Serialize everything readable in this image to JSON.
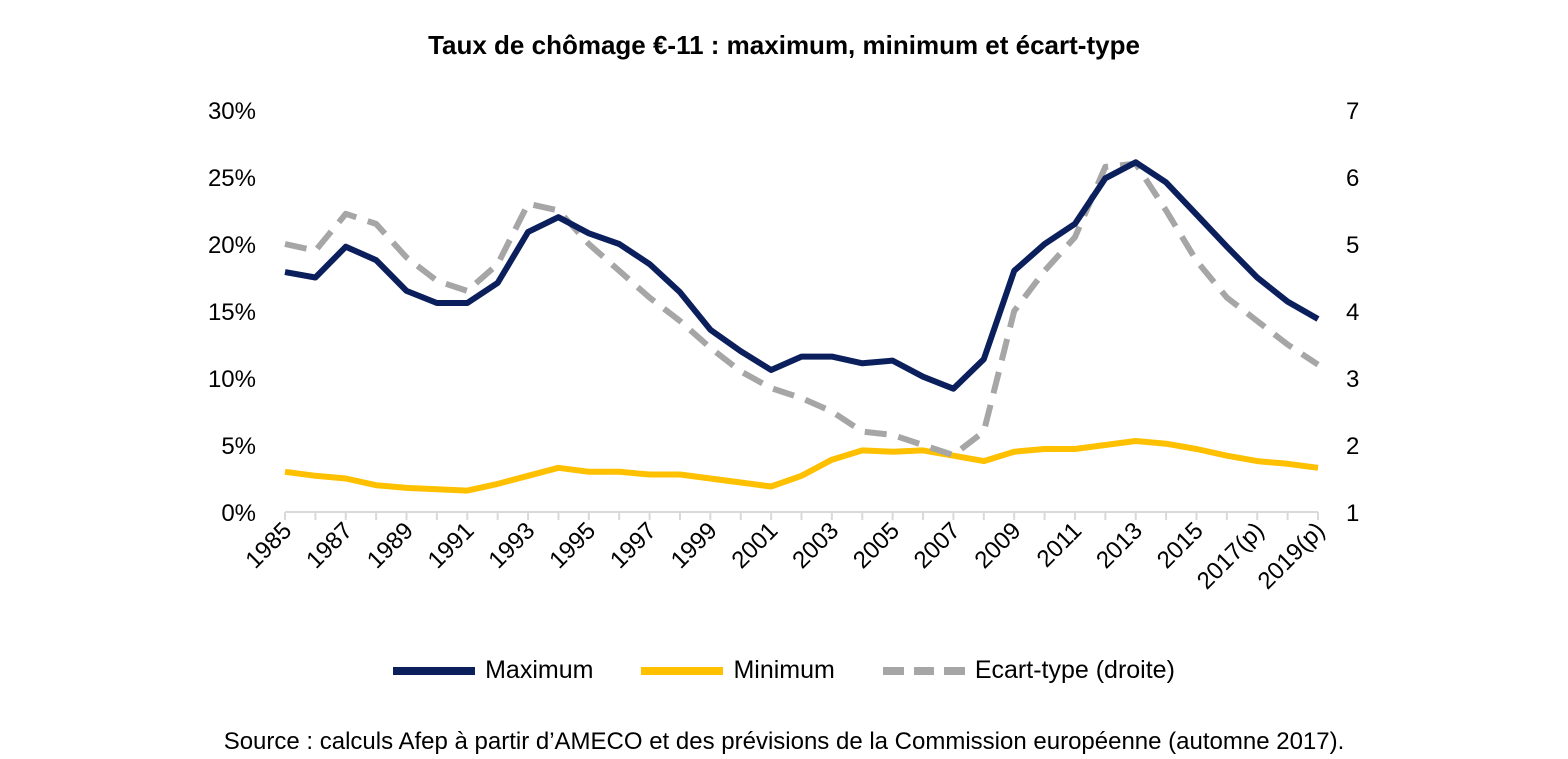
{
  "chart_data": {
    "type": "line",
    "title": "Taux de chômage €-11 : maximum, minimum et écart-type",
    "source": "Source : calculs Afep à partir d’AMECO et des prévisions de la Commission européenne (automne 2017).",
    "categories": [
      "1985",
      "1986",
      "1987",
      "1988",
      "1989",
      "1990",
      "1991",
      "1992",
      "1993",
      "1994",
      "1995",
      "1996",
      "1997",
      "1998",
      "1999",
      "2000",
      "2001",
      "2002",
      "2003",
      "2004",
      "2005",
      "2006",
      "2007",
      "2008",
      "2009",
      "2010",
      "2011",
      "2012",
      "2013",
      "2014",
      "2015",
      "2016",
      "2017(p)",
      "2018(p)",
      "2019(p)"
    ],
    "x_tick_labels": [
      "1985",
      "1987",
      "1989",
      "1991",
      "1993",
      "1995",
      "1997",
      "1999",
      "2001",
      "2003",
      "2005",
      "2007",
      "2009",
      "2011",
      "2013",
      "2015",
      "2017(p)",
      "2019(p)"
    ],
    "y_left": {
      "min": 0,
      "max": 30,
      "ticks": [
        "0%",
        "5%",
        "10%",
        "15%",
        "20%",
        "25%",
        "30%"
      ]
    },
    "y_right": {
      "min": 1,
      "max": 7,
      "ticks": [
        "1",
        "2",
        "3",
        "4",
        "5",
        "6",
        "7"
      ]
    },
    "grid": false,
    "legend_position": "bottom",
    "series": [
      {
        "name": "Maximum",
        "axis": "left",
        "color": "#0a1f5c",
        "style": "solid",
        "values": [
          17.9,
          17.5,
          19.8,
          18.8,
          16.5,
          15.6,
          15.6,
          17.1,
          20.9,
          22.0,
          20.8,
          20.0,
          18.5,
          16.4,
          13.6,
          12.0,
          10.6,
          11.6,
          11.6,
          11.1,
          11.3,
          10.1,
          9.2,
          11.4,
          18.0,
          20.0,
          21.5,
          24.9,
          26.1,
          24.6,
          22.2,
          19.8,
          17.5,
          15.7,
          14.4
        ]
      },
      {
        "name": "Minimum",
        "axis": "left",
        "color": "#ffc000",
        "style": "solid",
        "values": [
          3.0,
          2.7,
          2.5,
          2.0,
          1.8,
          1.7,
          1.6,
          2.1,
          2.7,
          3.3,
          3.0,
          3.0,
          2.8,
          2.8,
          2.5,
          2.2,
          1.9,
          2.7,
          3.9,
          4.6,
          4.5,
          4.6,
          4.2,
          3.8,
          4.5,
          4.7,
          4.7,
          5.0,
          5.3,
          5.1,
          4.7,
          4.2,
          3.8,
          3.6,
          3.3
        ]
      },
      {
        "name": "Ecart-type (droite)",
        "axis": "right",
        "color": "#a6a6a6",
        "style": "dashed",
        "values": [
          5.0,
          4.9,
          5.45,
          5.3,
          4.8,
          4.45,
          4.3,
          4.7,
          5.6,
          5.5,
          5.0,
          4.6,
          4.2,
          3.85,
          3.45,
          3.1,
          2.85,
          2.7,
          2.5,
          2.2,
          2.15,
          2.0,
          1.85,
          2.2,
          4.0,
          4.6,
          5.1,
          6.15,
          6.2,
          5.5,
          4.75,
          4.2,
          3.85,
          3.5,
          3.2
        ]
      }
    ]
  }
}
